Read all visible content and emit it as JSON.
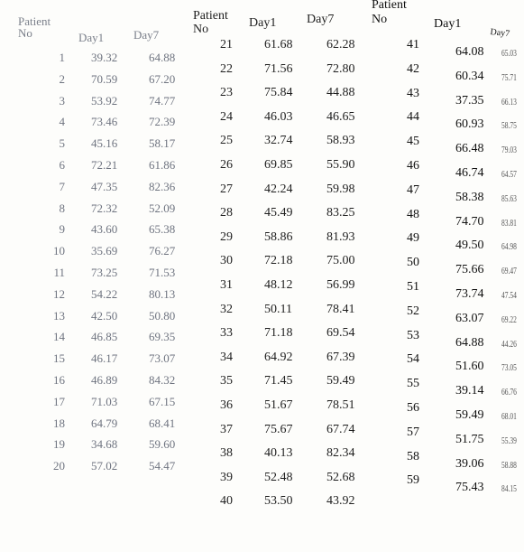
{
  "groups": [
    {
      "headers": {
        "no": "Patient No",
        "day1": "Day1",
        "day7": "Day7"
      },
      "rows": [
        {
          "no": "1",
          "day1": "39.32",
          "day7": "64.88"
        },
        {
          "no": "2",
          "day1": "70.59",
          "day7": "67.20"
        },
        {
          "no": "3",
          "day1": "53.92",
          "day7": "74.77"
        },
        {
          "no": "4",
          "day1": "73.46",
          "day7": "72.39"
        },
        {
          "no": "5",
          "day1": "45.16",
          "day7": "58.17"
        },
        {
          "no": "6",
          "day1": "72.21",
          "day7": "61.86"
        },
        {
          "no": "7",
          "day1": "47.35",
          "day7": "82.36"
        },
        {
          "no": "8",
          "day1": "72.32",
          "day7": "52.09"
        },
        {
          "no": "9",
          "day1": "43.60",
          "day7": "65.38"
        },
        {
          "no": "10",
          "day1": "35.69",
          "day7": "76.27"
        },
        {
          "no": "11",
          "day1": "73.25",
          "day7": "71.53"
        },
        {
          "no": "12",
          "day1": "54.22",
          "day7": "80.13"
        },
        {
          "no": "13",
          "day1": "42.50",
          "day7": "50.80"
        },
        {
          "no": "14",
          "day1": "46.85",
          "day7": "69.35"
        },
        {
          "no": "15",
          "day1": "46.17",
          "day7": "73.07"
        },
        {
          "no": "16",
          "day1": "46.89",
          "day7": "84.32"
        },
        {
          "no": "17",
          "day1": "71.03",
          "day7": "67.15"
        },
        {
          "no": "18",
          "day1": "64.79",
          "day7": "68.41"
        },
        {
          "no": "19",
          "day1": "34.68",
          "day7": "59.60"
        },
        {
          "no": "20",
          "day1": "57.02",
          "day7": "54.47"
        }
      ]
    },
    {
      "headers": {
        "no": "Patient No",
        "day1": "Day1",
        "day7": "Day7"
      },
      "rows": [
        {
          "no": "21",
          "day1": "61.68",
          "day7": "62.28"
        },
        {
          "no": "22",
          "day1": "71.56",
          "day7": "72.80"
        },
        {
          "no": "23",
          "day1": "75.84",
          "day7": "44.88"
        },
        {
          "no": "24",
          "day1": "46.03",
          "day7": "46.65"
        },
        {
          "no": "25",
          "day1": "32.74",
          "day7": "58.93"
        },
        {
          "no": "26",
          "day1": "69.85",
          "day7": "55.90"
        },
        {
          "no": "27",
          "day1": "42.24",
          "day7": "59.98"
        },
        {
          "no": "28",
          "day1": "45.49",
          "day7": "83.25"
        },
        {
          "no": "29",
          "day1": "58.86",
          "day7": "81.93"
        },
        {
          "no": "30",
          "day1": "72.18",
          "day7": "75.00"
        },
        {
          "no": "31",
          "day1": "48.12",
          "day7": "56.99"
        },
        {
          "no": "32",
          "day1": "50.11",
          "day7": "78.41"
        },
        {
          "no": "33",
          "day1": "71.18",
          "day7": "69.54"
        },
        {
          "no": "34",
          "day1": "64.92",
          "day7": "67.39"
        },
        {
          "no": "35",
          "day1": "71.45",
          "day7": "59.49"
        },
        {
          "no": "36",
          "day1": "51.67",
          "day7": "78.51"
        },
        {
          "no": "37",
          "day1": "75.67",
          "day7": "67.74"
        },
        {
          "no": "38",
          "day1": "40.13",
          "day7": "82.34"
        },
        {
          "no": "39",
          "day1": "52.48",
          "day7": "52.68"
        },
        {
          "no": "40",
          "day1": "53.50",
          "day7": "43.92"
        }
      ]
    },
    {
      "headers": {
        "no": "Patient No",
        "day1": "Day1",
        "day7": "Day7"
      },
      "rows": [
        {
          "no": "41",
          "day1": "64.08",
          "day7": "65.03"
        },
        {
          "no": "42",
          "day1": "60.34",
          "day7": "75.71"
        },
        {
          "no": "43",
          "day1": "37.35",
          "day7": "66.13"
        },
        {
          "no": "44",
          "day1": "60.93",
          "day7": "58.75"
        },
        {
          "no": "45",
          "day1": "66.48",
          "day7": "79.03"
        },
        {
          "no": "46",
          "day1": "46.74",
          "day7": "64.57"
        },
        {
          "no": "47",
          "day1": "58.38",
          "day7": "85.63"
        },
        {
          "no": "48",
          "day1": "74.70",
          "day7": "83.81"
        },
        {
          "no": "49",
          "day1": "49.50",
          "day7": "64.98"
        },
        {
          "no": "50",
          "day1": "75.66",
          "day7": "69.47"
        },
        {
          "no": "51",
          "day1": "73.74",
          "day7": "47.54"
        },
        {
          "no": "52",
          "day1": "63.07",
          "day7": "69.22"
        },
        {
          "no": "53",
          "day1": "64.88",
          "day7": "44.26"
        },
        {
          "no": "54",
          "day1": "51.60",
          "day7": "73.05"
        },
        {
          "no": "55",
          "day1": "39.14",
          "day7": "66.76"
        },
        {
          "no": "56",
          "day1": "59.49",
          "day7": "68.01"
        },
        {
          "no": "57",
          "day1": "51.75",
          "day7": "55.39"
        },
        {
          "no": "58",
          "day1": "39.06",
          "day7": "58.88"
        },
        {
          "no": "59",
          "day1": "75.43",
          "day7": "84.15"
        }
      ]
    }
  ]
}
